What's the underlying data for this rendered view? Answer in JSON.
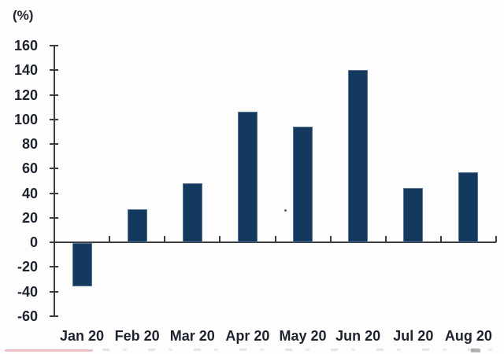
{
  "chart_data": {
    "type": "bar",
    "title": "",
    "unit_label": "(%)",
    "categories": [
      "Jan 20",
      "Feb 20",
      "Mar 20",
      "Apr 20",
      "May 20",
      "Jun 20",
      "Jul 20",
      "Aug 20"
    ],
    "values": [
      -35,
      27,
      48,
      106,
      94,
      140,
      44,
      57
    ],
    "xlabel": "",
    "ylabel": "(%)",
    "ylim": [
      -60,
      160
    ],
    "ytick_step": 20,
    "yticks": [
      160,
      140,
      120,
      100,
      80,
      60,
      40,
      20,
      0,
      -20,
      -40,
      -60
    ],
    "grid": "off",
    "legend": "none",
    "bar_color": "#14395f",
    "axis_color": "#3c3c3c",
    "label_color": "#1e222e",
    "background_color": "#fdfdfd"
  }
}
